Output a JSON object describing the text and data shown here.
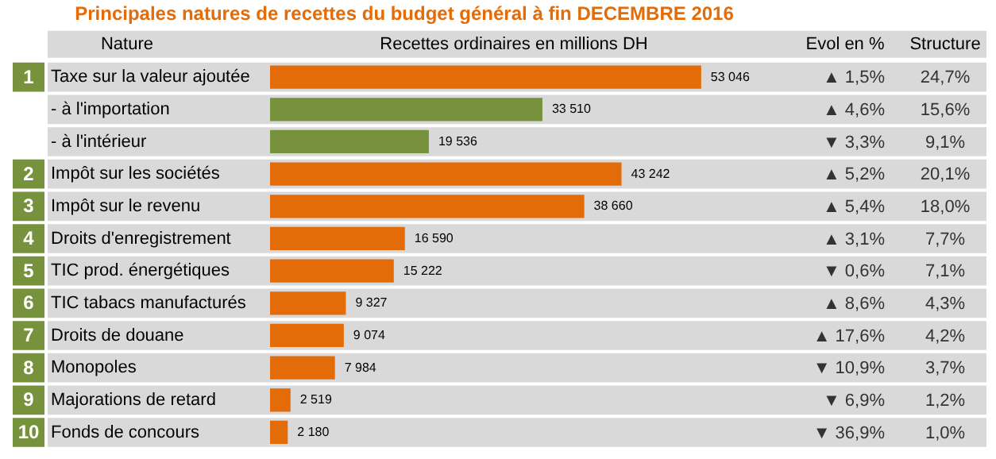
{
  "chart_data": {
    "type": "bar",
    "orientation": "horizontal",
    "title": "Principales natures de recettes du budget général à fin DECEMBRE 2016",
    "xlabel": "Recettes ordinaires en millions DH",
    "categories": [
      "Taxe sur la valeur ajoutée",
      "- à l'importation",
      "- à l'intérieur",
      "Impôt sur les sociétés",
      "Impôt sur le revenu",
      "Droits d'enregistrement",
      "TIC prod. énergétiques",
      "TIC tabacs manufacturés",
      "Droits de douane",
      "Monopoles",
      "Majorations de retard",
      "Fonds de concours"
    ],
    "values": [
      53046,
      33510,
      19536,
      43242,
      38660,
      16590,
      15222,
      9327,
      9074,
      7984,
      2519,
      2180
    ],
    "colors": [
      "#e36c09",
      "#76923c",
      "#76923c",
      "#e36c09",
      "#e36c09",
      "#e36c09",
      "#e36c09",
      "#e36c09",
      "#e36c09",
      "#e36c09",
      "#e36c09",
      "#e36c09"
    ],
    "value_labels": [
      "53 046",
      "33 510",
      "19 536",
      "43 242",
      "38 660",
      "16 590",
      "15 222",
      "9 327",
      "9 074",
      "7 984",
      "2 519",
      "2 180"
    ],
    "legend": false,
    "annotations": [
      "Nature",
      "Evol en %",
      "Structure",
      "1",
      "2",
      "3",
      "4",
      "5",
      "6",
      "7",
      "8",
      "9",
      "10",
      "▲ 1,5%",
      "▲ 4,6%",
      "▼ 3,3%",
      "▲ 5,2%",
      "▲ 5,4%",
      "▲ 3,1%",
      "▼ 0,6%",
      "▲ 8,6%",
      "▲ 17,6%",
      "▼ 10,9%",
      "▼ 6,9%",
      "▼ 36,9%",
      "24,7%",
      "15,6%",
      "9,1%",
      "20,1%",
      "18,0%",
      "7,7%",
      "7,1%",
      "4,3%",
      "4,2%",
      "3,7%",
      "1,2%",
      "1,0%"
    ]
  }
}
